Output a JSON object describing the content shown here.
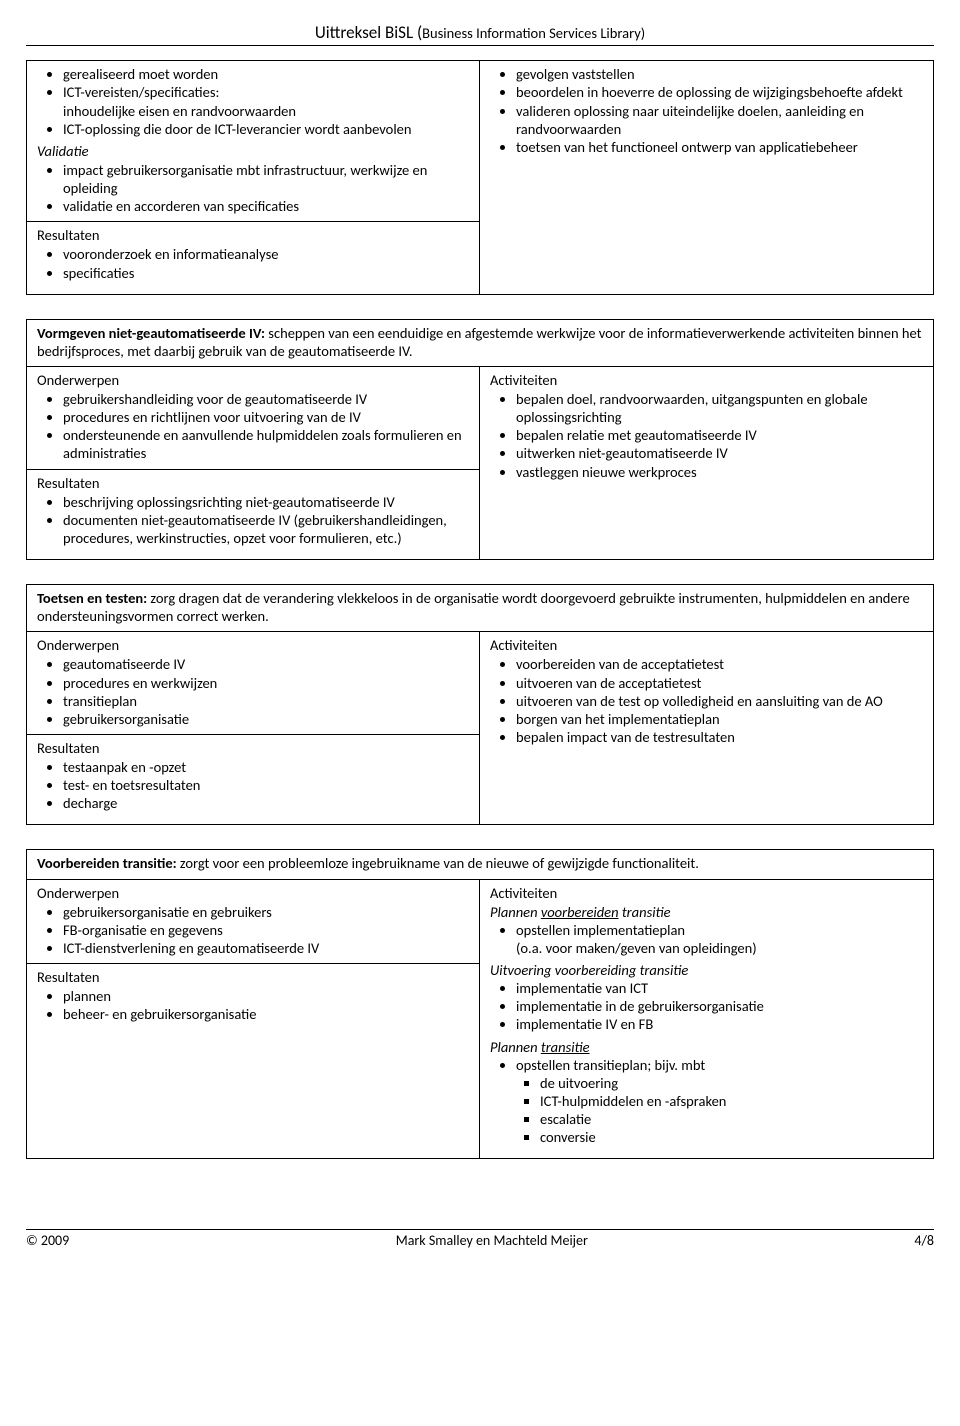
{
  "page_title_main": "Uittreksel BiSL (",
  "page_title_sub": "Business Information Services Library)",
  "box1": {
    "left_top_items": [
      "gerealiseerd moet worden",
      "ICT-vereisten/specificaties:\ninhoudelijke eisen en randvoorwaarden",
      "ICT-oplossing die door de ICT-leverancier wordt aanbevolen"
    ],
    "left_sub_head": "Validatie",
    "left_sub_items": [
      "impact gebruikersorganisatie mbt infrastructuur, werkwijze en opleiding",
      "validatie en accorderen van specificaties"
    ],
    "right_items": [
      "gevolgen vaststellen",
      "beoordelen in hoeverre de oplossing de wijzigingsbehoefte afdekt",
      "valideren oplossing naar uiteindelijke doelen, aanleiding en randvoorwaarden",
      "toetsen van het functioneel ontwerp van applicatiebeheer"
    ],
    "res_head": "Resultaten",
    "res_items": [
      "vooronderzoek en informatieanalyse",
      "specificaties"
    ]
  },
  "box2": {
    "header_bold": "Vormgeven niet-geautomatiseerde IV:",
    "header_rest": " scheppen van een eenduidige en afgestemde werkwijze voor de informatieverwerkende activiteiten binnen het bedrijfsproces, met daarbij gebruik van de geautomatiseerde IV.",
    "left_head": "Onderwerpen",
    "left_items": [
      "gebruikershandleiding voor de geautomatiseerde IV",
      "procedures en richtlijnen voor uitvoering van de IV",
      "ondersteunende en aanvullende hulpmiddelen zoals formulieren en administraties"
    ],
    "res_head": "Resultaten",
    "res_items": [
      "beschrijving oplossingsrichting niet-geautomatiseerde IV",
      "documenten niet-geautomatiseerde IV (gebruikershandleidingen, procedures, werkinstructies, opzet voor formulieren, etc.)"
    ],
    "right_head": "Activiteiten",
    "right_items": [
      "bepalen doel, randvoorwaarden, uitgangspunten en globale oplossingsrichting",
      "bepalen relatie met geautomatiseerde IV",
      "uitwerken niet-geautomatiseerde IV",
      "vastleggen nieuwe werkproces"
    ]
  },
  "box3": {
    "header_bold": "Toetsen en testen:",
    "header_rest": " zorg dragen dat de verandering vlekkeloos in de organisatie wordt doorgevoerd gebruikte instrumenten, hulpmiddelen en andere ondersteuningsvormen correct werken.",
    "left_head": "Onderwerpen",
    "left_items": [
      "geautomatiseerde IV",
      "procedures en werkwijzen",
      "transitieplan",
      "gebruikersorganisatie"
    ],
    "res_head": "Resultaten",
    "res_items": [
      "testaanpak en -opzet",
      "test- en toetsresultaten",
      "decharge"
    ],
    "right_head": "Activiteiten",
    "right_items": [
      "voorbereiden van de acceptatietest",
      "uitvoeren van de acceptatietest",
      "uitvoeren van de test op volledigheid en aansluiting van de AO",
      "borgen van het implementatieplan",
      "bepalen impact van de testresultaten"
    ]
  },
  "box4": {
    "header_bold": "Voorbereiden transitie:",
    "header_rest": " zorgt voor een probleemloze ingebruikname van de nieuwe of gewijzigde functionaliteit.",
    "left_head": "Onderwerpen",
    "left_items": [
      "gebruikersorganisatie en gebruikers",
      "FB-organisatie en gegevens",
      "ICT-dienstverlening en geautomatiseerde IV"
    ],
    "res_head": "Resultaten",
    "res_items": [
      "plannen",
      "beheer- en gebruikersorganisatie"
    ],
    "right_head": "Activiteiten",
    "right_g1_pre": "Plannen ",
    "right_g1_under": "voorbereiden",
    "right_g1_post": " transitie",
    "right_g1_items": [
      "opstellen implementatieplan\n(o.a. voor maken/geven van opleidingen)"
    ],
    "right_g2": "Uitvoering voorbereiding transitie",
    "right_g2_items": [
      "implementatie van ICT",
      "implementatie in de gebruikersorganisatie",
      "implementatie IV en FB"
    ],
    "right_g3_pre": "Plannen ",
    "right_g3_under": "transitie",
    "right_g3_item": "opstellen transitieplan; bijv. mbt",
    "right_g3_sub": [
      "de uitvoering",
      "ICT-hulpmiddelen en -afspraken",
      "escalatie",
      "conversie"
    ]
  },
  "footer_left": "© 2009",
  "footer_center": "Mark Smalley en Machteld Meijer",
  "footer_right": "4/8"
}
